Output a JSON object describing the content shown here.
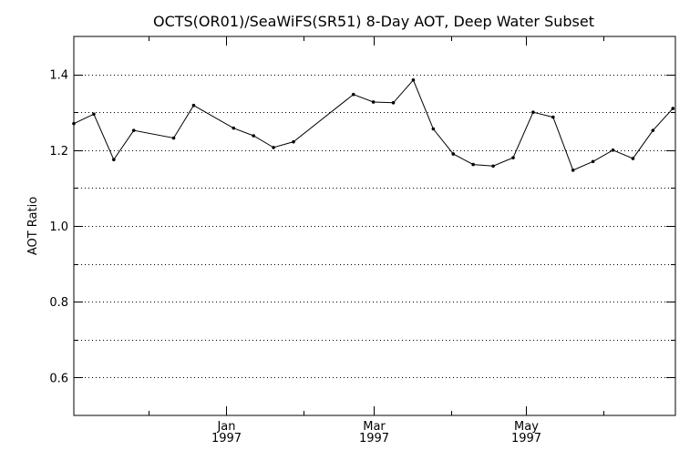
{
  "chart_data": {
    "type": "line",
    "title": "OCTS(OR01)/SeaWiFS(SR51) 8-Day AOT, Deep Water Subset",
    "xlabel": "",
    "ylabel": "AOT Ratio",
    "x_axis": {
      "type": "date",
      "range": [
        "1996-11-01",
        "1997-06-30"
      ],
      "major_ticks": [
        {
          "date": "1997-01-01",
          "label_top": "Jan",
          "label_bottom": "1997"
        },
        {
          "date": "1997-03-01",
          "label_top": "Mar",
          "label_bottom": "1997"
        },
        {
          "date": "1997-05-01",
          "label_top": "May",
          "label_bottom": "1997"
        }
      ],
      "minor_ticks": [
        "1996-12-01",
        "1997-02-01",
        "1997-04-01",
        "1997-06-01"
      ]
    },
    "y_axis": {
      "range": [
        0.5,
        1.5
      ],
      "ticks": [
        0.6,
        0.8,
        1.0,
        1.2,
        1.4
      ],
      "tick_labels": [
        "0.6",
        "0.8",
        "1.0",
        "1.2",
        "1.4"
      ]
    },
    "grid": "horizontal dotted every 0.1",
    "series": [
      {
        "marker": "dot",
        "color": "#000000",
        "points": [
          {
            "x": "1996-11-01",
            "y": 1.27
          },
          {
            "x": "1996-11-09",
            "y": 1.295
          },
          {
            "x": "1996-11-17",
            "y": 1.175
          },
          {
            "x": "1996-11-25",
            "y": 1.252
          },
          {
            "x": "1996-12-11",
            "y": 1.232
          },
          {
            "x": "1996-12-19",
            "y": 1.318
          },
          {
            "x": "1997-01-04",
            "y": 1.258
          },
          {
            "x": "1997-01-12",
            "y": 1.238
          },
          {
            "x": "1997-01-20",
            "y": 1.207
          },
          {
            "x": "1997-01-28",
            "y": 1.222
          },
          {
            "x": "1997-02-21",
            "y": 1.347
          },
          {
            "x": "1997-03-01",
            "y": 1.327
          },
          {
            "x": "1997-03-09",
            "y": 1.325
          },
          {
            "x": "1997-03-17",
            "y": 1.385
          },
          {
            "x": "1997-03-25",
            "y": 1.256
          },
          {
            "x": "1997-04-02",
            "y": 1.19
          },
          {
            "x": "1997-04-10",
            "y": 1.162
          },
          {
            "x": "1997-04-18",
            "y": 1.158
          },
          {
            "x": "1997-04-26",
            "y": 1.18
          },
          {
            "x": "1997-05-04",
            "y": 1.3
          },
          {
            "x": "1997-05-12",
            "y": 1.287
          },
          {
            "x": "1997-05-20",
            "y": 1.147
          },
          {
            "x": "1997-05-28",
            "y": 1.17
          },
          {
            "x": "1997-06-05",
            "y": 1.2
          },
          {
            "x": "1997-06-13",
            "y": 1.178
          },
          {
            "x": "1997-06-21",
            "y": 1.252
          },
          {
            "x": "1997-06-29",
            "y": 1.31
          }
        ]
      }
    ]
  }
}
